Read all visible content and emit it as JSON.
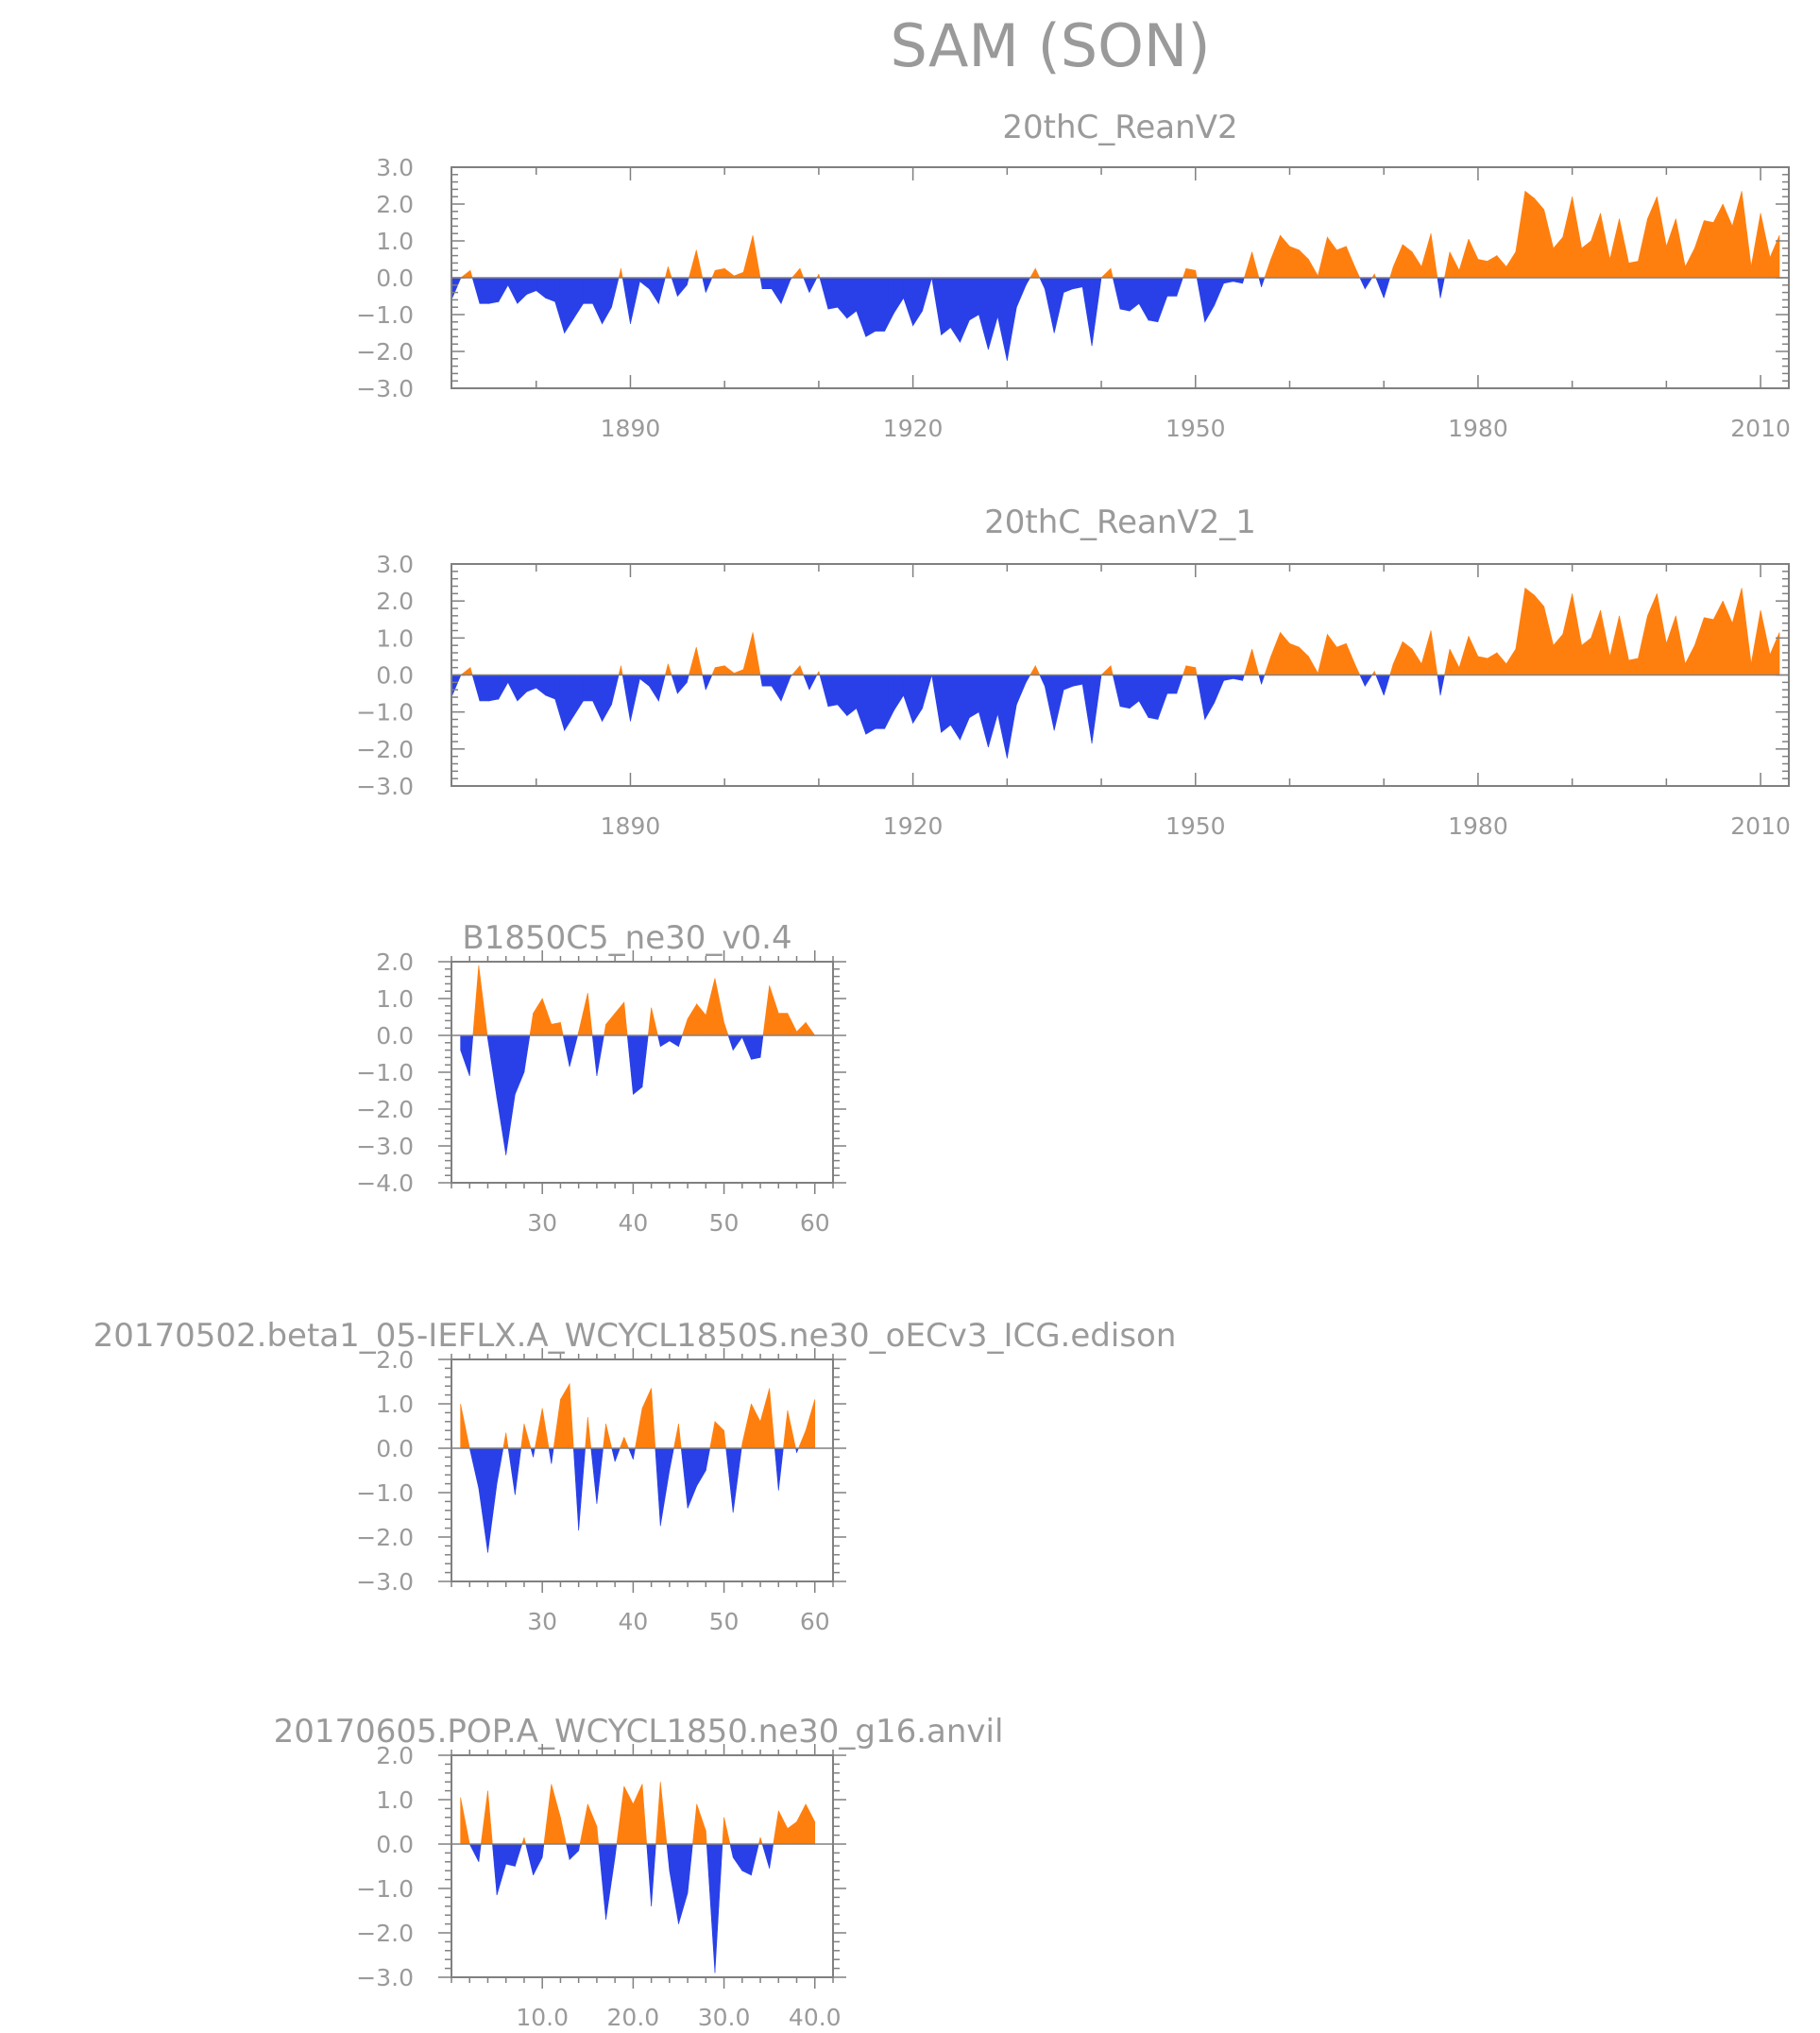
{
  "page_title": "SAM (SON)",
  "colors": {
    "positive": "#ff7f0e",
    "negative": "#2940e8",
    "axis": "#808080",
    "text": "#9a9a9a"
  },
  "chart_data": [
    {
      "type": "area",
      "title": "20thC_ReanV2",
      "xlim": [
        1871,
        2013
      ],
      "ylim": [
        -3.0,
        3.0
      ],
      "x_ticks": [
        1890,
        1920,
        1950,
        1980,
        2010
      ],
      "x_tick_labels": [
        "1890",
        "1920",
        "1950",
        "1980",
        "2010"
      ],
      "y_ticks": [
        -3,
        -2,
        -1,
        0,
        1,
        2,
        3
      ],
      "y_tick_labels": [
        "−3.0",
        "−2.0",
        "−1.0",
        "0.0",
        "1.0",
        "2.0",
        "3.0"
      ],
      "x": [
        1871,
        1872,
        1873,
        1874,
        1875,
        1876,
        1877,
        1878,
        1879,
        1880,
        1881,
        1882,
        1883,
        1884,
        1885,
        1886,
        1887,
        1888,
        1889,
        1890,
        1891,
        1892,
        1893,
        1894,
        1895,
        1896,
        1897,
        1898,
        1899,
        1900,
        1901,
        1902,
        1903,
        1904,
        1905,
        1906,
        1907,
        1908,
        1909,
        1910,
        1911,
        1912,
        1913,
        1914,
        1915,
        1916,
        1917,
        1918,
        1919,
        1920,
        1921,
        1922,
        1923,
        1924,
        1925,
        1926,
        1927,
        1928,
        1929,
        1930,
        1931,
        1932,
        1933,
        1934,
        1935,
        1936,
        1937,
        1938,
        1939,
        1940,
        1941,
        1942,
        1943,
        1944,
        1945,
        1946,
        1947,
        1948,
        1949,
        1950,
        1951,
        1952,
        1953,
        1954,
        1955,
        1956,
        1957,
        1958,
        1959,
        1960,
        1961,
        1962,
        1963,
        1964,
        1965,
        1966,
        1967,
        1968,
        1969,
        1970,
        1971,
        1972,
        1973,
        1974,
        1975,
        1976,
        1977,
        1978,
        1979,
        1980,
        1981,
        1982,
        1983,
        1984,
        1985,
        1986,
        1987,
        1988,
        1989,
        1990,
        1991,
        1992,
        1993,
        1994,
        1995,
        1996,
        1997,
        1998,
        1999,
        2000,
        2001,
        2002,
        2003,
        2004,
        2005,
        2006,
        2007,
        2008,
        2009,
        2010,
        2011,
        2012
      ],
      "values": [
        -0.6,
        0.0,
        0.2,
        -0.7,
        -0.7,
        -0.65,
        -0.2,
        -0.7,
        -0.45,
        -0.35,
        -0.55,
        -0.65,
        -1.5,
        -1.1,
        -0.7,
        -0.7,
        -1.25,
        -0.8,
        0.25,
        -1.25,
        -0.1,
        -0.3,
        -0.7,
        0.3,
        -0.5,
        -0.2,
        0.75,
        -0.4,
        0.2,
        0.25,
        0.05,
        0.15,
        1.15,
        -0.3,
        -0.3,
        -0.7,
        -0.05,
        0.25,
        -0.4,
        0.1,
        -0.85,
        -0.8,
        -1.1,
        -0.9,
        -1.6,
        -1.45,
        -1.45,
        -0.95,
        -0.55,
        -1.3,
        -0.9,
        0.0,
        -1.55,
        -1.35,
        -1.75,
        -1.15,
        -1.0,
        -1.95,
        -1.05,
        -2.25,
        -0.8,
        -0.2,
        0.25,
        -0.3,
        -1.5,
        -0.4,
        -0.3,
        -0.25,
        -1.85,
        0.0,
        0.25,
        -0.85,
        -0.9,
        -0.7,
        -1.15,
        -1.2,
        -0.5,
        -0.5,
        0.25,
        0.2,
        -1.2,
        -0.75,
        -0.15,
        -0.1,
        -0.15,
        0.7,
        -0.25,
        0.5,
        1.15,
        0.85,
        0.75,
        0.5,
        0.05,
        1.1,
        0.75,
        0.85,
        0.25,
        -0.3,
        0.1,
        -0.55,
        0.3,
        0.9,
        0.7,
        0.3,
        1.2,
        -0.55,
        0.7,
        0.2,
        1.05,
        0.5,
        0.45,
        0.6,
        0.3,
        0.7,
        2.35,
        2.15,
        1.85,
        0.8,
        1.1,
        2.2,
        0.8,
        1.0,
        1.75,
        0.5,
        1.6,
        0.4,
        0.45,
        1.6,
        2.2,
        0.85,
        1.6,
        0.3,
        0.8,
        1.55,
        1.5,
        2.0,
        1.4,
        2.35,
        0.3,
        1.75,
        0.55,
        1.15
      ]
    },
    {
      "type": "area",
      "title": "20thC_ReanV2_1",
      "xlim": [
        1871,
        2013
      ],
      "ylim": [
        -3.0,
        3.0
      ],
      "x_ticks": [
        1890,
        1920,
        1950,
        1980,
        2010
      ],
      "x_tick_labels": [
        "1890",
        "1920",
        "1950",
        "1980",
        "2010"
      ],
      "y_ticks": [
        -3,
        -2,
        -1,
        0,
        1,
        2,
        3
      ],
      "y_tick_labels": [
        "−3.0",
        "−2.0",
        "−1.0",
        "0.0",
        "1.0",
        "2.0",
        "3.0"
      ],
      "x": [
        1871,
        1872,
        1873,
        1874,
        1875,
        1876,
        1877,
        1878,
        1879,
        1880,
        1881,
        1882,
        1883,
        1884,
        1885,
        1886,
        1887,
        1888,
        1889,
        1890,
        1891,
        1892,
        1893,
        1894,
        1895,
        1896,
        1897,
        1898,
        1899,
        1900,
        1901,
        1902,
        1903,
        1904,
        1905,
        1906,
        1907,
        1908,
        1909,
        1910,
        1911,
        1912,
        1913,
        1914,
        1915,
        1916,
        1917,
        1918,
        1919,
        1920,
        1921,
        1922,
        1923,
        1924,
        1925,
        1926,
        1927,
        1928,
        1929,
        1930,
        1931,
        1932,
        1933,
        1934,
        1935,
        1936,
        1937,
        1938,
        1939,
        1940,
        1941,
        1942,
        1943,
        1944,
        1945,
        1946,
        1947,
        1948,
        1949,
        1950,
        1951,
        1952,
        1953,
        1954,
        1955,
        1956,
        1957,
        1958,
        1959,
        1960,
        1961,
        1962,
        1963,
        1964,
        1965,
        1966,
        1967,
        1968,
        1969,
        1970,
        1971,
        1972,
        1973,
        1974,
        1975,
        1976,
        1977,
        1978,
        1979,
        1980,
        1981,
        1982,
        1983,
        1984,
        1985,
        1986,
        1987,
        1988,
        1989,
        1990,
        1991,
        1992,
        1993,
        1994,
        1995,
        1996,
        1997,
        1998,
        1999,
        2000,
        2001,
        2002,
        2003,
        2004,
        2005,
        2006,
        2007,
        2008,
        2009,
        2010,
        2011,
        2012
      ],
      "values": [
        -0.6,
        0.0,
        0.2,
        -0.7,
        -0.7,
        -0.65,
        -0.2,
        -0.7,
        -0.45,
        -0.35,
        -0.55,
        -0.65,
        -1.5,
        -1.1,
        -0.7,
        -0.7,
        -1.25,
        -0.8,
        0.25,
        -1.25,
        -0.1,
        -0.3,
        -0.7,
        0.3,
        -0.5,
        -0.2,
        0.75,
        -0.4,
        0.2,
        0.25,
        0.05,
        0.15,
        1.15,
        -0.3,
        -0.3,
        -0.7,
        -0.05,
        0.25,
        -0.4,
        0.1,
        -0.85,
        -0.8,
        -1.1,
        -0.9,
        -1.6,
        -1.45,
        -1.45,
        -0.95,
        -0.55,
        -1.3,
        -0.9,
        0.0,
        -1.55,
        -1.35,
        -1.75,
        -1.15,
        -1.0,
        -1.95,
        -1.05,
        -2.25,
        -0.8,
        -0.2,
        0.25,
        -0.3,
        -1.5,
        -0.4,
        -0.3,
        -0.25,
        -1.85,
        0.0,
        0.25,
        -0.85,
        -0.9,
        -0.7,
        -1.15,
        -1.2,
        -0.5,
        -0.5,
        0.25,
        0.2,
        -1.2,
        -0.75,
        -0.15,
        -0.1,
        -0.15,
        0.7,
        -0.25,
        0.5,
        1.15,
        0.85,
        0.75,
        0.5,
        0.05,
        1.1,
        0.75,
        0.85,
        0.25,
        -0.3,
        0.1,
        -0.55,
        0.3,
        0.9,
        0.7,
        0.3,
        1.2,
        -0.55,
        0.7,
        0.2,
        1.05,
        0.5,
        0.45,
        0.6,
        0.3,
        0.7,
        2.35,
        2.15,
        1.85,
        0.8,
        1.1,
        2.2,
        0.8,
        1.0,
        1.75,
        0.5,
        1.6,
        0.4,
        0.45,
        1.6,
        2.2,
        0.85,
        1.6,
        0.3,
        0.8,
        1.55,
        1.5,
        2.0,
        1.4,
        2.35,
        0.3,
        1.75,
        0.55,
        1.15
      ]
    },
    {
      "type": "area",
      "title": "B1850C5_ne30_v0.4",
      "xlim": [
        20,
        62
      ],
      "ylim": [
        -4.0,
        2.0
      ],
      "x_ticks": [
        30,
        40,
        50,
        60
      ],
      "x_tick_labels": [
        "30",
        "40",
        "50",
        "60"
      ],
      "y_ticks": [
        -4,
        -3,
        -2,
        -1,
        0,
        1,
        2
      ],
      "y_tick_labels": [
        "−4.0",
        "−3.0",
        "−2.0",
        "−1.0",
        "0.0",
        "1.0",
        "2.0"
      ],
      "x": [
        21,
        22,
        23,
        24,
        25,
        26,
        27,
        28,
        29,
        30,
        31,
        32,
        33,
        34,
        35,
        36,
        37,
        38,
        39,
        40,
        41,
        42,
        43,
        44,
        45,
        46,
        47,
        48,
        49,
        50,
        51,
        52,
        53,
        54,
        55,
        56,
        57,
        58,
        59,
        60
      ],
      "values": [
        -0.4,
        -1.1,
        1.9,
        -0.1,
        -1.7,
        -3.25,
        -1.6,
        -1.0,
        0.6,
        1.0,
        0.3,
        0.35,
        -0.85,
        0.1,
        1.15,
        -1.1,
        0.3,
        0.6,
        0.9,
        -1.6,
        -1.4,
        0.75,
        -0.3,
        -0.15,
        -0.3,
        0.45,
        0.85,
        0.55,
        1.55,
        0.35,
        -0.4,
        -0.05,
        -0.65,
        -0.6,
        1.35,
        0.6,
        0.6,
        0.1,
        0.35,
        0.0
      ]
    },
    {
      "type": "area",
      "title": "20170502.beta1_05-IEFLX.A_WCYCL1850S.ne30_oECv3_ICG.edison",
      "xlim": [
        20,
        62
      ],
      "ylim": [
        -3.0,
        2.0
      ],
      "x_ticks": [
        30,
        40,
        50,
        60
      ],
      "x_tick_labels": [
        "30",
        "40",
        "50",
        "60"
      ],
      "y_ticks": [
        -3,
        -2,
        -1,
        0,
        1,
        2
      ],
      "y_tick_labels": [
        "−3.0",
        "−2.0",
        "−1.0",
        "0.0",
        "1.0",
        "2.0"
      ],
      "x": [
        21,
        22,
        23,
        24,
        25,
        26,
        27,
        28,
        29,
        30,
        31,
        32,
        33,
        34,
        35,
        36,
        37,
        38,
        39,
        40,
        41,
        42,
        43,
        44,
        45,
        46,
        47,
        48,
        49,
        50,
        51,
        52,
        53,
        54,
        55,
        56,
        57,
        58,
        59,
        60
      ],
      "values": [
        1.0,
        0.0,
        -0.9,
        -2.35,
        -0.8,
        0.35,
        -1.05,
        0.55,
        -0.2,
        0.9,
        -0.35,
        1.1,
        1.45,
        -1.85,
        0.7,
        -1.25,
        0.55,
        -0.3,
        0.25,
        -0.25,
        0.9,
        1.35,
        -1.75,
        -0.5,
        0.55,
        -1.35,
        -0.85,
        -0.5,
        0.6,
        0.4,
        -1.45,
        0.1,
        1.0,
        0.6,
        1.35,
        -0.95,
        0.85,
        -0.1,
        0.4,
        1.1
      ]
    },
    {
      "type": "area",
      "title": "20170605.POP.A_WCYCL1850.ne30_g16.anvil",
      "xlim": [
        0,
        42
      ],
      "ylim": [
        -3.0,
        2.0
      ],
      "x_ticks": [
        10,
        20,
        30,
        40
      ],
      "x_tick_labels": [
        "10.0",
        "20.0",
        "30.0",
        "40.0"
      ],
      "y_ticks": [
        -3,
        -2,
        -1,
        0,
        1,
        2
      ],
      "y_tick_labels": [
        "−3.0",
        "−2.0",
        "−1.0",
        "0.0",
        "1.0",
        "2.0"
      ],
      "x": [
        1,
        2,
        3,
        4,
        5,
        6,
        7,
        8,
        9,
        10,
        11,
        12,
        13,
        14,
        15,
        16,
        17,
        18,
        19,
        20,
        21,
        22,
        23,
        24,
        25,
        26,
        27,
        28,
        29,
        30,
        31,
        32,
        33,
        34,
        35,
        36,
        37,
        38,
        39,
        40
      ],
      "values": [
        1.05,
        0.0,
        -0.4,
        1.2,
        -1.15,
        -0.45,
        -0.5,
        0.15,
        -0.7,
        -0.3,
        1.35,
        0.6,
        -0.35,
        -0.15,
        0.9,
        0.4,
        -1.7,
        -0.3,
        1.3,
        0.9,
        1.35,
        -1.4,
        1.4,
        -0.6,
        -1.8,
        -1.1,
        0.9,
        0.3,
        -2.9,
        0.6,
        -0.3,
        -0.6,
        -0.7,
        0.15,
        -0.55,
        0.75,
        0.35,
        0.5,
        0.9,
        0.5
      ]
    }
  ]
}
